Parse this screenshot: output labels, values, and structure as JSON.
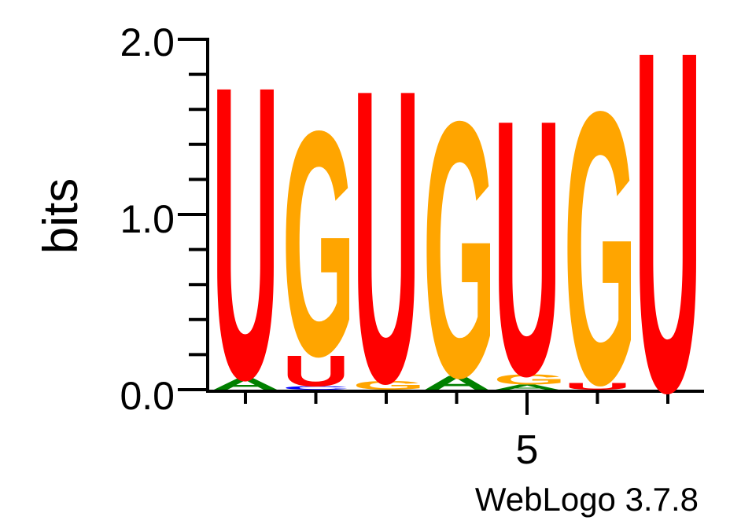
{
  "chart_data": {
    "type": "sequence-logo",
    "ylabel": "bits",
    "ylim": [
      0,
      2.0
    ],
    "y_ticks": [
      "0.0",
      "1.0",
      "2.0"
    ],
    "x_tick_label": "5",
    "footer": "WebLogo 3.7.8",
    "colors": {
      "U": "#ff0000",
      "G": "#ffa500",
      "A": "#008000",
      "C": "#0000ff"
    },
    "positions": [
      {
        "position": 1,
        "letters": [
          {
            "letter": "A",
            "height": 0.07
          },
          {
            "letter": "U",
            "height": 1.72
          }
        ]
      },
      {
        "position": 2,
        "letters": [
          {
            "letter": "C",
            "height": 0.02
          },
          {
            "letter": "U",
            "height": 0.18
          },
          {
            "letter": "G",
            "height": 1.32
          }
        ]
      },
      {
        "position": 3,
        "letters": [
          {
            "letter": "G",
            "height": 0.05
          },
          {
            "letter": "U",
            "height": 1.72
          }
        ]
      },
      {
        "position": 4,
        "letters": [
          {
            "letter": "A",
            "height": 0.08
          },
          {
            "letter": "G",
            "height": 1.5
          }
        ]
      },
      {
        "position": 5,
        "letters": [
          {
            "letter": "A",
            "height": 0.03
          },
          {
            "letter": "G",
            "height": 0.06
          },
          {
            "letter": "U",
            "height": 1.5
          }
        ]
      },
      {
        "position": 6,
        "letters": [
          {
            "letter": "U",
            "height": 0.04
          },
          {
            "letter": "G",
            "height": 1.6
          }
        ]
      },
      {
        "position": 7,
        "letters": [
          {
            "letter": "U",
            "height": 2.0
          }
        ]
      }
    ]
  }
}
